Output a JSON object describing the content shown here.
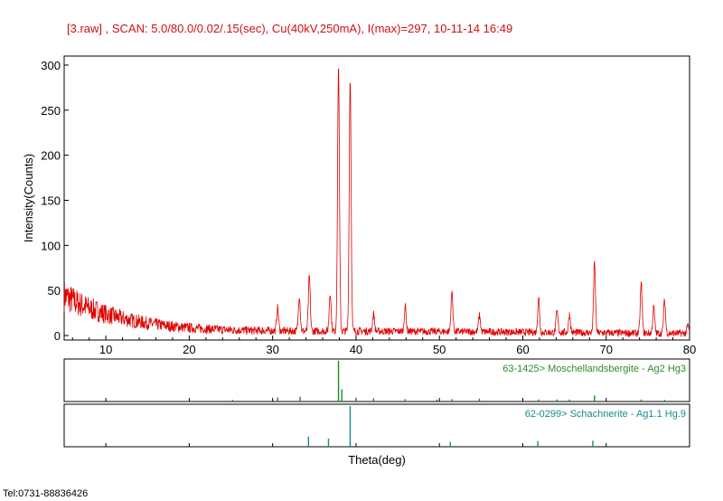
{
  "chart_data": {
    "type": "line",
    "title": "[3.raw] , SCAN: 5.0/80.0/0.02/.15(sec), Cu(40kV,250mA), I(max)=297, 10-11-14 16:49",
    "xlabel": "Theta(deg)",
    "ylabel": "Intensity(Counts)",
    "xlim": [
      5,
      80
    ],
    "ylim": [
      -5,
      310
    ],
    "x_ticks": [
      10,
      20,
      30,
      40,
      50,
      60,
      70,
      80
    ],
    "y_ticks": [
      0,
      50,
      100,
      150,
      200,
      250,
      300
    ],
    "grid": false,
    "series": [
      {
        "color": "#e00000",
        "peaks": [
          {
            "x": 30.6,
            "y": 28
          },
          {
            "x": 33.2,
            "y": 42
          },
          {
            "x": 34.4,
            "y": 63
          },
          {
            "x": 36.9,
            "y": 45
          },
          {
            "x": 37.9,
            "y": 297
          },
          {
            "x": 39.3,
            "y": 283
          },
          {
            "x": 42.1,
            "y": 22
          },
          {
            "x": 45.9,
            "y": 30
          },
          {
            "x": 51.5,
            "y": 46
          },
          {
            "x": 54.8,
            "y": 20
          },
          {
            "x": 61.9,
            "y": 40
          },
          {
            "x": 64.1,
            "y": 25
          },
          {
            "x": 65.6,
            "y": 22
          },
          {
            "x": 68.6,
            "y": 78
          },
          {
            "x": 74.2,
            "y": 56
          },
          {
            "x": 75.7,
            "y": 30
          },
          {
            "x": 77.0,
            "y": 38
          },
          {
            "x": 79.8,
            "y": 10
          }
        ]
      }
    ],
    "reference_patterns": [
      {
        "label": "63-1425> Moschellandsbergite - Ag2 Hg3",
        "color": "#1e8c1e",
        "lines": [
          {
            "x": 25.2,
            "h": 0.04
          },
          {
            "x": 30.6,
            "h": 0.1
          },
          {
            "x": 33.3,
            "h": 0.12
          },
          {
            "x": 37.9,
            "h": 1.0
          },
          {
            "x": 38.3,
            "h": 0.3
          },
          {
            "x": 40.0,
            "h": 0.06
          },
          {
            "x": 42.1,
            "h": 0.08
          },
          {
            "x": 45.9,
            "h": 0.06
          },
          {
            "x": 49.7,
            "h": 0.05
          },
          {
            "x": 51.5,
            "h": 0.06
          },
          {
            "x": 54.8,
            "h": 0.07
          },
          {
            "x": 61.9,
            "h": 0.05
          },
          {
            "x": 64.1,
            "h": 0.05
          },
          {
            "x": 65.6,
            "h": 0.05
          },
          {
            "x": 68.6,
            "h": 0.15
          },
          {
            "x": 74.2,
            "h": 0.05
          },
          {
            "x": 77.0,
            "h": 0.04
          }
        ]
      },
      {
        "label": "62-0299> Schachnerite - Ag1.1 Hg.9",
        "color": "#1a8a8a",
        "lines": [
          {
            "x": 34.3,
            "h": 0.25
          },
          {
            "x": 36.7,
            "h": 0.2
          },
          {
            "x": 39.3,
            "h": 1.0
          },
          {
            "x": 51.3,
            "h": 0.12
          },
          {
            "x": 61.8,
            "h": 0.14
          },
          {
            "x": 68.4,
            "h": 0.15
          }
        ]
      }
    ]
  },
  "footer": {
    "contact": "Tel:0731-88836426"
  }
}
